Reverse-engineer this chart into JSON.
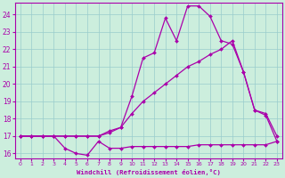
{
  "bg_color": "#cceedd",
  "line_color": "#aa00aa",
  "grid_color": "#99cccc",
  "xlabel": "Windchill (Refroidissement éolien,°C)",
  "xlim": [
    -0.5,
    23.5
  ],
  "ylim": [
    15.7,
    24.7
  ],
  "yticks": [
    16,
    17,
    18,
    19,
    20,
    21,
    22,
    23,
    24
  ],
  "xticks": [
    0,
    1,
    2,
    3,
    4,
    5,
    6,
    7,
    8,
    9,
    10,
    11,
    12,
    13,
    14,
    15,
    16,
    17,
    18,
    19,
    20,
    21,
    22,
    23
  ],
  "line1_x": [
    0,
    1,
    2,
    3,
    4,
    5,
    6,
    7,
    8,
    9,
    10,
    11,
    12,
    13,
    14,
    15,
    16,
    17,
    18,
    19,
    20,
    21,
    22,
    23
  ],
  "line1_y": [
    17.0,
    17.0,
    17.0,
    17.0,
    16.3,
    16.0,
    15.9,
    16.7,
    16.3,
    16.3,
    16.4,
    16.4,
    16.4,
    16.4,
    16.4,
    16.4,
    16.5,
    16.5,
    16.5,
    16.5,
    16.5,
    16.5,
    16.5,
    16.7
  ],
  "line2_x": [
    0,
    1,
    2,
    3,
    4,
    5,
    6,
    7,
    8,
    9,
    10,
    11,
    12,
    13,
    14,
    15,
    16,
    17,
    18,
    19,
    20,
    21,
    22,
    23
  ],
  "line2_y": [
    17.0,
    17.0,
    17.0,
    17.0,
    17.0,
    17.0,
    17.0,
    17.0,
    17.2,
    17.5,
    18.3,
    19.0,
    19.5,
    20.0,
    20.5,
    21.0,
    21.3,
    21.7,
    22.0,
    22.5,
    20.7,
    18.5,
    18.3,
    17.0
  ],
  "line3_x": [
    0,
    1,
    2,
    3,
    4,
    5,
    6,
    7,
    8,
    9,
    10,
    11,
    12,
    13,
    14,
    15,
    16,
    17,
    18,
    19,
    20,
    21,
    22,
    23
  ],
  "line3_y": [
    17.0,
    17.0,
    17.0,
    17.0,
    17.0,
    17.0,
    17.0,
    17.0,
    17.3,
    17.5,
    19.3,
    21.5,
    21.8,
    23.8,
    22.5,
    24.5,
    24.5,
    23.9,
    22.5,
    22.3,
    20.7,
    18.5,
    18.2,
    16.7
  ]
}
